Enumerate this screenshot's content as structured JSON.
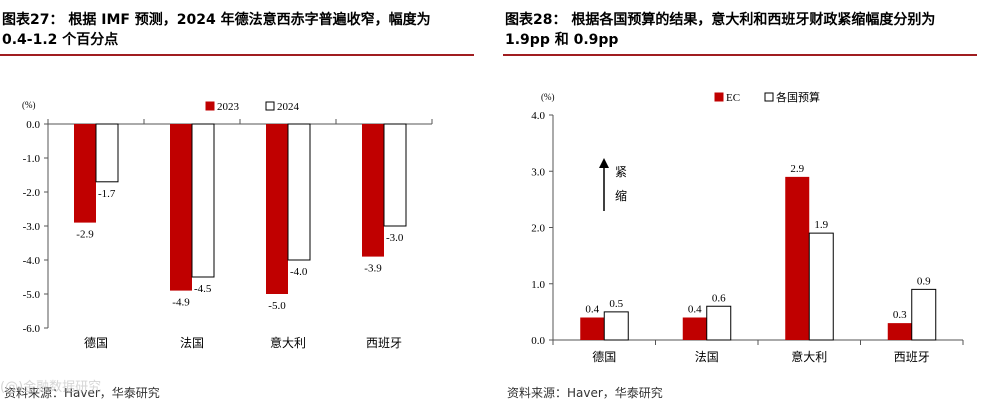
{
  "left_panel": {
    "title_line1": "图表27： 根据 IMF 预测，2024 年德法意西赤字普遍收窄，幅度为",
    "title_line2": "0.4-1.2 个百分点",
    "source": "资料来源：Haver，华泰研究"
  },
  "right_panel": {
    "title_line1": "图表28： 根据各国预算的结果，意大利和西班牙财政紧缩幅度分别为",
    "title_line2": "1.9pp 和 0.9pp",
    "source": "资料来源：Haver，华泰研究"
  },
  "watermark": "(@)金融数据研究",
  "colors": {
    "red": "#c00000",
    "title_rule": "#a01d20",
    "axis": "#555555"
  },
  "chart_data": [
    {
      "type": "bar",
      "unit_label": "(%)",
      "categories": [
        "德国",
        "法国",
        "意大利",
        "西班牙"
      ],
      "series": [
        {
          "name": "2023",
          "values": [
            -2.9,
            -4.9,
            -5.0,
            -3.9
          ],
          "labels": [
            "-2.9",
            "-4.9",
            "-5.0",
            "-3.9"
          ],
          "fill": "#c00000"
        },
        {
          "name": "2024",
          "values": [
            -1.7,
            -4.5,
            -4.0,
            -3.0
          ],
          "labels": [
            "-1.7",
            "-4.5",
            "-4.0",
            "-3.0"
          ],
          "fill": "#ffffff"
        }
      ],
      "ylim": [
        -6.0,
        0.0
      ],
      "yticks": [
        0.0,
        -1.0,
        -2.0,
        -3.0,
        -4.0,
        -5.0,
        -6.0
      ],
      "ytick_labels": [
        "0.0",
        "-1.0",
        "-2.0",
        "-3.0",
        "-4.0",
        "-5.0",
        "-6.0"
      ],
      "legend_position": "top-center"
    },
    {
      "type": "bar",
      "unit_label": "(%)",
      "categories": [
        "德国",
        "法国",
        "意大利",
        "西班牙"
      ],
      "series": [
        {
          "name": "EC",
          "values": [
            0.4,
            0.4,
            2.9,
            0.3
          ],
          "labels": [
            "0.4",
            "0.4",
            "2.9",
            "0.3"
          ],
          "fill": "#c00000"
        },
        {
          "name": "各国预算",
          "values": [
            0.5,
            0.6,
            1.9,
            0.9
          ],
          "labels": [
            "0.5",
            "0.6",
            "1.9",
            "0.9"
          ],
          "fill": "#ffffff"
        }
      ],
      "ylim": [
        0.0,
        4.0
      ],
      "yticks": [
        0.0,
        1.0,
        2.0,
        3.0,
        4.0
      ],
      "ytick_labels": [
        "0.0",
        "1.0",
        "2.0",
        "3.0",
        "4.0"
      ],
      "annotation": {
        "text_chars": [
          "紧",
          "缩"
        ]
      },
      "legend_position": "top-center"
    }
  ]
}
